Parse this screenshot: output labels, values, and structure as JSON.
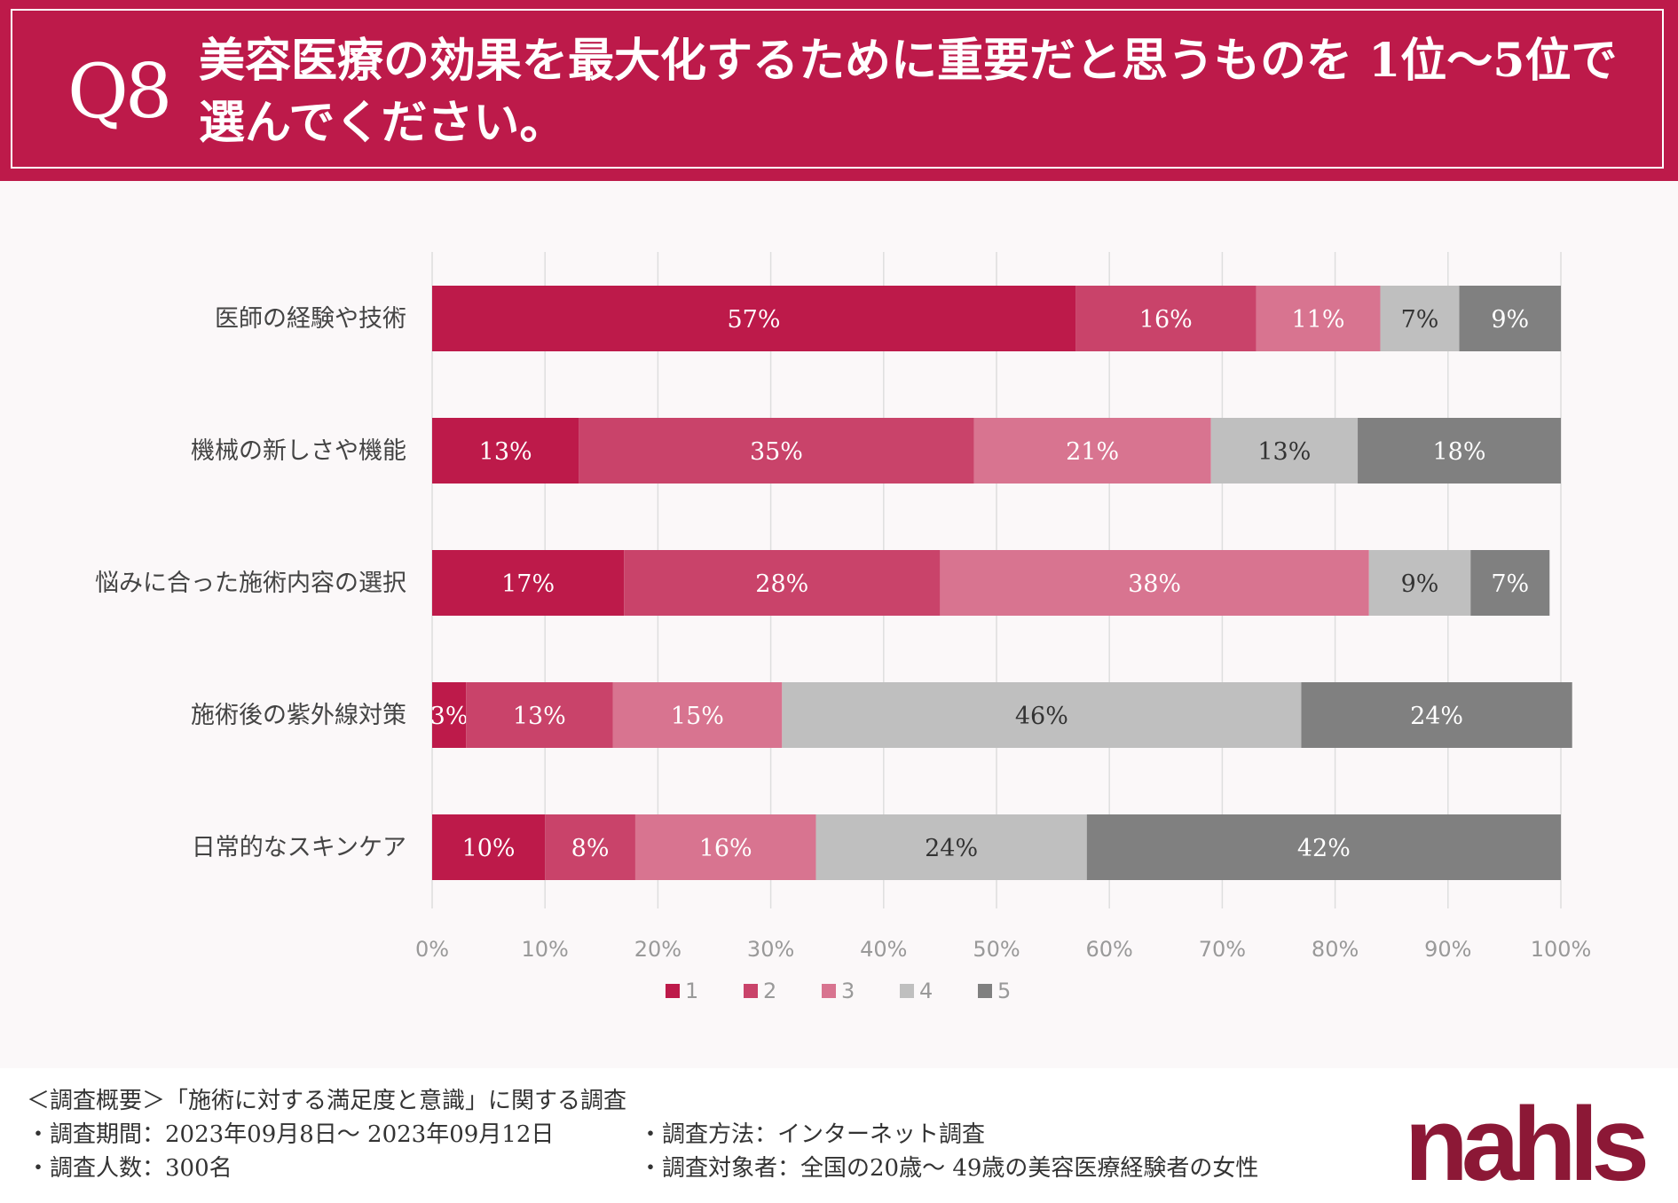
{
  "header": {
    "q_label": "Q8",
    "question": "美容医療の効果を最大化するために重要だと思うものを 1位〜5位で選んでください。"
  },
  "chart_data": {
    "type": "bar",
    "orientation": "horizontal",
    "stacked": true,
    "categories": [
      "医師の経験や技術",
      "機械の新しさや機能",
      "悩みに合った施術内容の選択",
      "施術後の紫外線対策",
      "日常的なスキンケア"
    ],
    "series": [
      {
        "name": "1",
        "color": "#bd1a4a",
        "label_color": "#ffffff",
        "values": [
          57,
          13,
          17,
          3,
          10
        ]
      },
      {
        "name": "2",
        "color": "#c9436a",
        "label_color": "#ffffff",
        "values": [
          16,
          35,
          28,
          13,
          8
        ]
      },
      {
        "name": "3",
        "color": "#d87490",
        "label_color": "#ffffff",
        "values": [
          11,
          21,
          38,
          15,
          16
        ]
      },
      {
        "name": "4",
        "color": "#bfbfbf",
        "label_color": "#333333",
        "values": [
          7,
          13,
          9,
          46,
          24
        ]
      },
      {
        "name": "5",
        "color": "#808080",
        "label_color": "#ffffff",
        "values": [
          9,
          18,
          7,
          24,
          42
        ]
      }
    ],
    "xlim": [
      0,
      100
    ],
    "x_ticks": [
      "0%",
      "10%",
      "20%",
      "30%",
      "40%",
      "50%",
      "60%",
      "70%",
      "80%",
      "90%",
      "100%"
    ],
    "value_suffix": "%",
    "grid": true,
    "legend_position": "bottom-center"
  },
  "footer": {
    "summary_title": "＜調査概要＞「施術に対する満足度と意識」に関する調査",
    "period": "・調査期間：2023年09月8日〜 2023年09月12日",
    "method": "・調査方法：インターネット調査",
    "count": "・調査人数：300名",
    "target": "・調査対象者：全国の20歳〜 49歳の美容医療経験者の女性",
    "brand": "nahls"
  }
}
